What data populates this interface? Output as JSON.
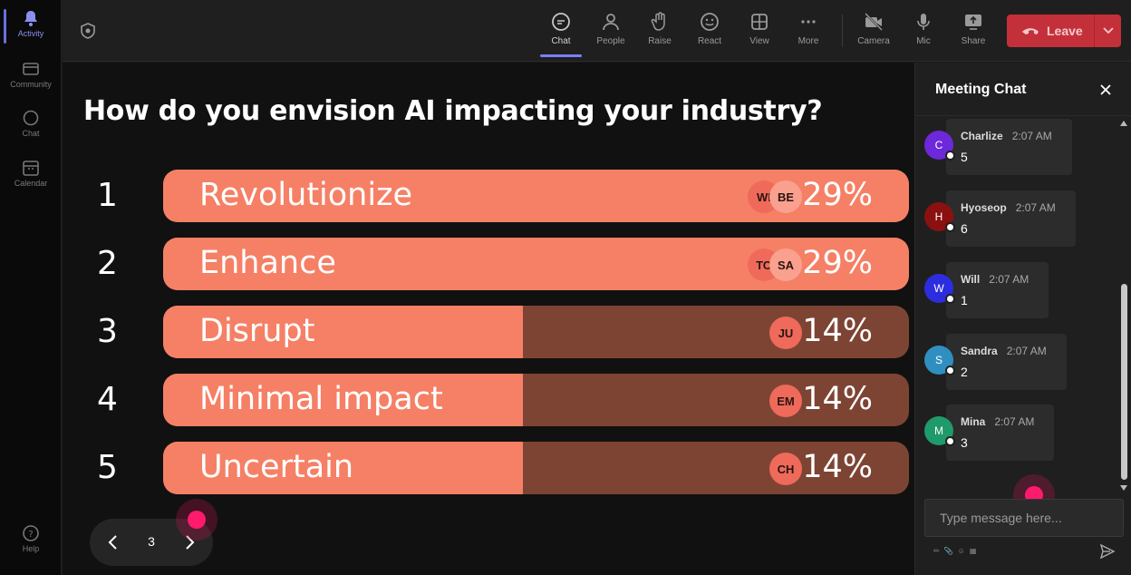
{
  "rail": {
    "items": [
      {
        "label": "Activity",
        "active": true
      },
      {
        "label": "Community"
      },
      {
        "label": "Chat"
      },
      {
        "label": "Calendar"
      }
    ],
    "help_label": "Help"
  },
  "toolbar": {
    "buttons": [
      {
        "label": "Chat",
        "active": true
      },
      {
        "label": "People"
      },
      {
        "label": "Raise"
      },
      {
        "label": "React"
      },
      {
        "label": "View"
      },
      {
        "label": "More"
      },
      {
        "label": "Camera"
      },
      {
        "label": "Mic"
      },
      {
        "label": "Share"
      }
    ],
    "leave_label": "Leave"
  },
  "poll": {
    "question": "How do you envision AI impacting your industry?",
    "options": [
      {
        "rank": "1",
        "label": "Revolutionize",
        "percent_label": "29%",
        "percent": 29,
        "avatars": [
          "WI",
          "BE"
        ]
      },
      {
        "rank": "2",
        "label": "Enhance",
        "percent_label": "29%",
        "percent": 29,
        "avatars": [
          "TO",
          "SA"
        ]
      },
      {
        "rank": "3",
        "label": "Disrupt",
        "percent_label": "14%",
        "percent": 14,
        "avatars": [
          "JU"
        ]
      },
      {
        "rank": "4",
        "label": "Minimal impact",
        "percent_label": "14%",
        "percent": 14,
        "avatars": [
          "EM"
        ]
      },
      {
        "rank": "5",
        "label": "Uncertain",
        "percent_label": "14%",
        "percent": 14,
        "avatars": [
          "CH"
        ]
      }
    ],
    "page": "3"
  },
  "chat": {
    "title": "Meeting Chat",
    "messages": [
      {
        "initial": "C",
        "name": "Charlize",
        "time": "2:07 AM",
        "text": "5",
        "color": "#6d28d9"
      },
      {
        "initial": "H",
        "name": "Hyoseop",
        "time": "2:07 AM",
        "text": "6",
        "color": "#8b1111"
      },
      {
        "initial": "W",
        "name": "Will",
        "time": "2:07 AM",
        "text": "1",
        "color": "#2d2de0"
      },
      {
        "initial": "S",
        "name": "Sandra",
        "time": "2:07 AM",
        "text": "2",
        "color": "#2f8fc0"
      },
      {
        "initial": "M",
        "name": "Mina",
        "time": "2:07 AM",
        "text": "3",
        "color": "#1f9a6a"
      }
    ],
    "input_placeholder": "Type message here..."
  },
  "colors": {
    "bar_fill": "#f58066",
    "bar_track": "#7d4434",
    "leave": "#c4303a",
    "accent": "#7b80ff"
  }
}
